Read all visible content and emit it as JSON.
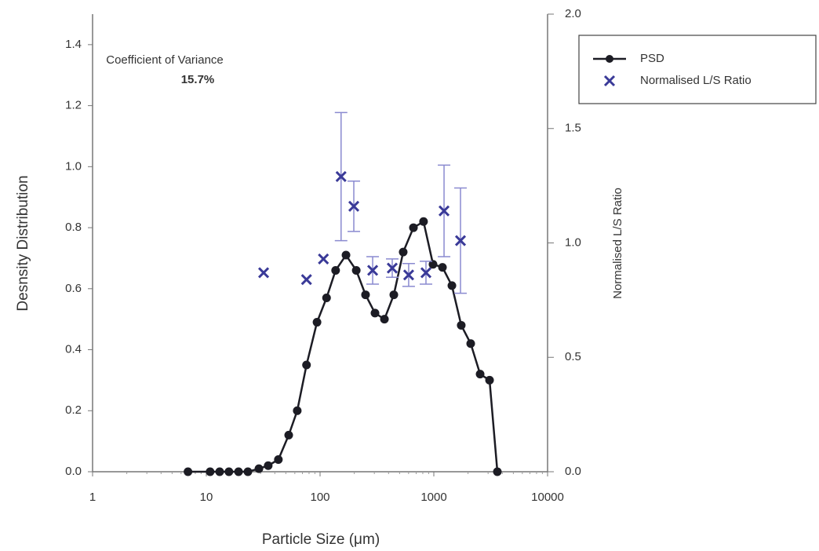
{
  "chart_data": {
    "type": "scatter",
    "x_label": "Particle Size (μm)",
    "y_label": "Desnsity Distribution",
    "y2_label": "Normalised L/S Ratio",
    "annotations": [
      "Coefficient of Variance",
      "15.7%"
    ],
    "xscale": "log",
    "xlim": [
      1,
      10000
    ],
    "xticks": [
      1,
      10,
      100,
      1000,
      10000
    ],
    "ylim": [
      0,
      1.5
    ],
    "yticks": [
      {
        "value": 0,
        "label": "0.0"
      },
      {
        "value": 0.2,
        "label": "0.2"
      },
      {
        "value": 0.4,
        "label": "0.4"
      },
      {
        "value": 0.6,
        "label": "0.6"
      },
      {
        "value": 0.8,
        "label": "0.8"
      },
      {
        "value": 1,
        "label": "1.0"
      },
      {
        "value": 1.2,
        "label": "1.2"
      },
      {
        "value": 1.4,
        "label": "1.4"
      }
    ],
    "y2lim": [
      0,
      2
    ],
    "y2ticks": [
      {
        "value": 0,
        "label": "0.0"
      },
      {
        "value": 0.5,
        "label": "0.5"
      },
      {
        "value": 1,
        "label": "1.0"
      },
      {
        "value": 1.5,
        "label": "1.5"
      },
      {
        "value": 2,
        "label": "2.0"
      }
    ],
    "grid": false,
    "legend": "right",
    "series": [
      {
        "name": "PSD",
        "color": "#1c1c24",
        "marker": "circle",
        "line": true,
        "x": [
          6.9,
          10.8,
          13.1,
          15.8,
          19.2,
          23.2,
          29,
          35,
          43,
          53,
          63,
          76,
          94,
          114,
          137,
          169,
          208,
          251,
          304,
          368,
          445,
          538,
          662,
          812,
          984,
          1191,
          1442,
          1742,
          2110,
          2553,
          3090,
          3620
        ],
        "values": [
          0,
          0,
          0,
          0,
          0,
          0,
          0.01,
          0.02,
          0.04,
          0.12,
          0.2,
          0.35,
          0.49,
          0.57,
          0.66,
          0.71,
          0.66,
          0.58,
          0.52,
          0.5,
          0.58,
          0.72,
          0.8,
          0.82,
          0.68,
          0.67,
          0.61,
          0.48,
          0.42,
          0.32,
          0.3,
          0
        ]
      },
      {
        "name": "Normalised L/S Ratio",
        "color": "#3a3a98",
        "marker": "x",
        "line": false,
        "axis": "y2",
        "x": [
          31.9,
          76,
          107,
          153,
          198,
          290,
          431,
          601,
          853,
          1230,
          1716
        ],
        "values": [
          0.87,
          0.84,
          0.93,
          1.29,
          1.16,
          0.88,
          0.89,
          0.86,
          0.87,
          1.14,
          1.01
        ],
        "errors": [
          null,
          null,
          null,
          0.28,
          0.11,
          0.06,
          0.04,
          0.05,
          0.05,
          0.2,
          0.23
        ]
      }
    ]
  }
}
